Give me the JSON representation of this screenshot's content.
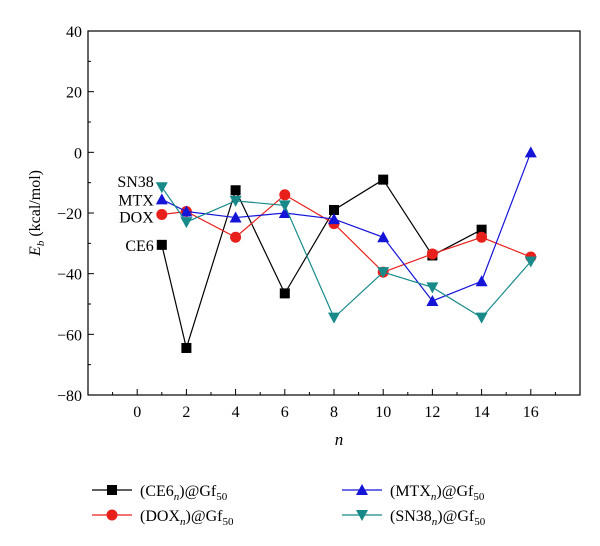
{
  "chart_data": {
    "type": "line",
    "xlabel": "n",
    "ylabel_main": "E",
    "ylabel_sub": "b",
    "ylabel_unit": "(kcal/mol)",
    "xlim": [
      -2,
      18
    ],
    "ylim": [
      -80,
      40
    ],
    "xticks": [
      0,
      2,
      4,
      6,
      8,
      10,
      12,
      14,
      16
    ],
    "yticks": [
      -80,
      -60,
      -40,
      -20,
      0,
      20,
      40
    ],
    "grid": false,
    "legend_position": "bottom",
    "series": [
      {
        "id": "ce6",
        "name": "(CE6n)@Gf50",
        "legend_parts": [
          "(CE6",
          "n",
          ")@Gf",
          "50"
        ],
        "marker": "square",
        "color": "#000000",
        "annotation": "CE6",
        "x": [
          1,
          2,
          4,
          6,
          8,
          10,
          12,
          14
        ],
        "y": [
          -30.5,
          -64.5,
          -12.5,
          -46.5,
          -19,
          -9,
          -34,
          -25.5
        ]
      },
      {
        "id": "dox",
        "name": "(DOXn)@Gf50",
        "legend_parts": [
          "(DOX",
          "n",
          ")@Gf",
          "50"
        ],
        "marker": "circle",
        "color": "#e8201c",
        "annotation": "DOX",
        "x": [
          1,
          2,
          4,
          6,
          8,
          10,
          12,
          14,
          16
        ],
        "y": [
          -20.5,
          -19.5,
          -28,
          -14,
          -23.5,
          -39.5,
          -33.5,
          -28,
          -34.5
        ]
      },
      {
        "id": "mtx",
        "name": "(MTXn)@Gf50",
        "legend_parts": [
          "(MTX",
          "n",
          ")@Gf",
          "50"
        ],
        "marker": "triangle-up",
        "color": "#1515d8",
        "annotation": "MTX",
        "x": [
          1,
          2,
          4,
          6,
          8,
          10,
          12,
          14,
          16
        ],
        "y": [
          -15.5,
          -19.5,
          -21.5,
          -20,
          -22,
          -28,
          -49,
          -42.5,
          0
        ]
      },
      {
        "id": "sn38",
        "name": "(SN38n)@Gf50",
        "legend_parts": [
          "(SN38",
          "n",
          ")@Gf",
          "50"
        ],
        "marker": "triangle-down",
        "color": "#188a8a",
        "annotation": "SN38",
        "x": [
          1,
          2,
          4,
          6,
          8,
          10,
          12,
          14,
          16
        ],
        "y": [
          -11.5,
          -23,
          -16,
          -17.5,
          -54.5,
          -39.5,
          -44.5,
          -54.5,
          -36
        ]
      }
    ]
  }
}
